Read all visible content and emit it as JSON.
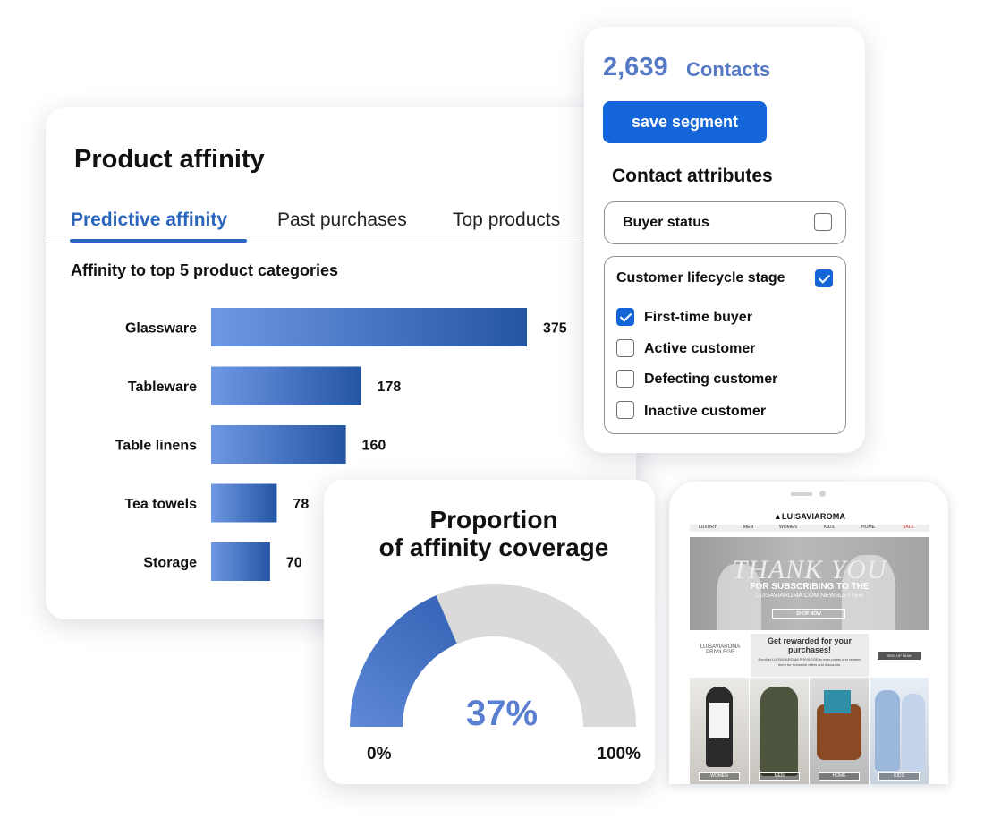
{
  "affinity": {
    "title": "Product affinity",
    "tabs": [
      {
        "label": "Predictive affinity",
        "active": true
      },
      {
        "label": "Past purchases",
        "active": false
      },
      {
        "label": "Top products",
        "active": false
      }
    ],
    "chart_title": "Affinity to top 5 product categories"
  },
  "chart_data": [
    {
      "type": "bar",
      "orientation": "horizontal",
      "title": "Affinity to top 5 product categories",
      "categories": [
        "Glassware",
        "Tableware",
        "Table linens",
        "Tea towels",
        "Storage"
      ],
      "values": [
        375,
        178,
        160,
        78,
        70
      ],
      "xlim": [
        0,
        375
      ],
      "grid": false,
      "colors": {
        "start": "#6e97e4",
        "end": "#2455a4"
      }
    },
    {
      "type": "gauge",
      "title": "Proportion of affinity coverage",
      "value": 37,
      "value_label": "37%",
      "min_label": "0%",
      "max_label": "100%",
      "colors": {
        "fill_start": "#5f89d8",
        "fill_end": "#3a67b9",
        "track": "#dadada"
      }
    }
  ],
  "gauge": {
    "title_line1": "Proportion",
    "title_line2": "of affinity coverage"
  },
  "contacts": {
    "count": "2,639",
    "unit": "Contacts",
    "save_label": "save segment",
    "attributes_heading": "Contact attributes",
    "buyer_status": {
      "label": "Buyer status",
      "checked": false
    },
    "lifecycle": {
      "label": "Customer lifecycle stage",
      "checked": true,
      "options": [
        {
          "label": "First-time buyer",
          "checked": true
        },
        {
          "label": "Active customer",
          "checked": false
        },
        {
          "label": "Defecting customer",
          "checked": false
        },
        {
          "label": "Inactive customer",
          "checked": false
        }
      ]
    }
  },
  "phone": {
    "brand": "▲LUISAVIAROMA",
    "menu": [
      "LUXURY",
      "MEN",
      "WOMEN",
      "KIDS",
      "HOME",
      "SALE"
    ],
    "hero_line1": "THANK YOU",
    "hero_line2": "FOR SUBSCRIBING TO THE",
    "hero_line3": "LUISAVIAROMA.COM NEWSLETTER",
    "hero_button": "SHOP NOW",
    "promo_logo": "LUISAVIAROMA PRIVILEGE",
    "promo_heading": "Get rewarded for your purchases!",
    "promo_text": "Enroll in LUISAVIAROMA PRIVILEGE to earn points and redeem them for exclusive offers and discounts.",
    "promo_button": "SIGN UP NOW",
    "tiles": [
      "WOMEN",
      "MEN",
      "HOME",
      "KIDS"
    ],
    "sale_color": "#d33"
  }
}
